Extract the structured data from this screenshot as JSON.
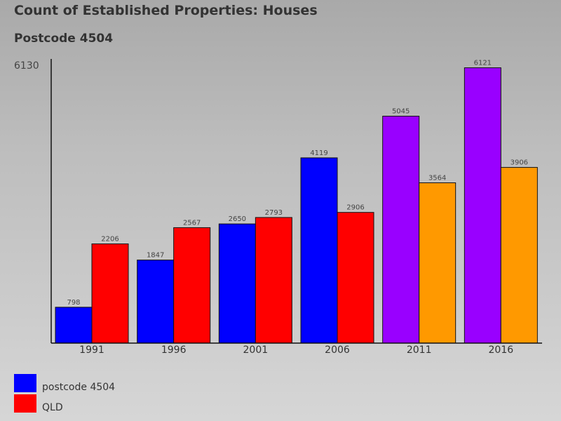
{
  "chart_data": {
    "type": "bar",
    "title": "Count of Established Properties: Houses",
    "subtitle": "Postcode 4504",
    "categories": [
      "1991",
      "1996",
      "2001",
      "2006",
      "2011",
      "2016"
    ],
    "ylim": [
      0,
      6130
    ],
    "y_max_label": "6130",
    "series": [
      {
        "name": "postcode 4504",
        "values": [
          798,
          1847,
          2650,
          4119,
          5045,
          6121
        ],
        "colors": [
          "#0000ff",
          "#0000ff",
          "#0000ff",
          "#0000ff",
          "#9900ff",
          "#9900ff"
        ]
      },
      {
        "name": "QLD",
        "values": [
          2206,
          2567,
          2793,
          2906,
          3564,
          3906
        ],
        "colors": [
          "#ff0000",
          "#ff0000",
          "#ff0000",
          "#ff0000",
          "#ff9900",
          "#ff9900"
        ]
      }
    ],
    "legend": [
      {
        "label": "postcode 4504",
        "color": "#0000ff"
      },
      {
        "label": "QLD",
        "color": "#ff0000"
      }
    ]
  }
}
